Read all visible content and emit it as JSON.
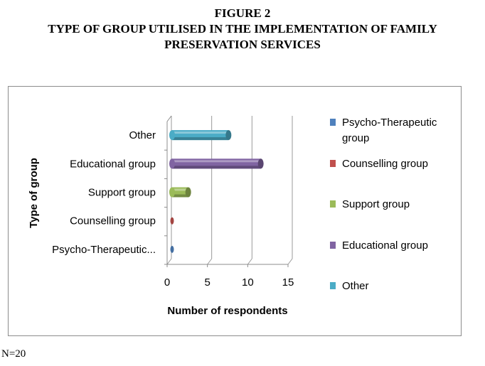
{
  "figure": {
    "title_line1": "FIGURE 2",
    "title_line2": "TYPE OF GROUP UTILISED IN THE IMPLEMENTATION OF FAMILY",
    "title_line3": "PRESERVATION SERVICES"
  },
  "note": "N=20",
  "chart_data": {
    "type": "bar",
    "orientation": "horizontal",
    "style": "3d-cylinder",
    "categories": [
      "Psycho-Therapeutic group",
      "Counselling group",
      "Support group",
      "Educational group",
      "Other"
    ],
    "category_tick_labels": [
      "Psycho-Therapeutic...",
      "Counselling group",
      "Support group",
      "Educational group",
      "Other"
    ],
    "values": [
      0,
      0,
      2,
      11,
      7
    ],
    "xlabel": "Number of respondents",
    "ylabel": "Type of group",
    "xlim": [
      0,
      15
    ],
    "xticks": [
      "0",
      "5",
      "10",
      "15"
    ],
    "grid": true,
    "legend_position": "right",
    "legend": [
      {
        "label": "Psycho-Therapeutic group",
        "color": "#4f81bd"
      },
      {
        "label": "Counselling group",
        "color": "#c0504d"
      },
      {
        "label": "Support group",
        "color": "#9bbb59"
      },
      {
        "label": "Educational group",
        "color": "#8064a2"
      },
      {
        "label": "Other",
        "color": "#4bacc6"
      }
    ]
  }
}
